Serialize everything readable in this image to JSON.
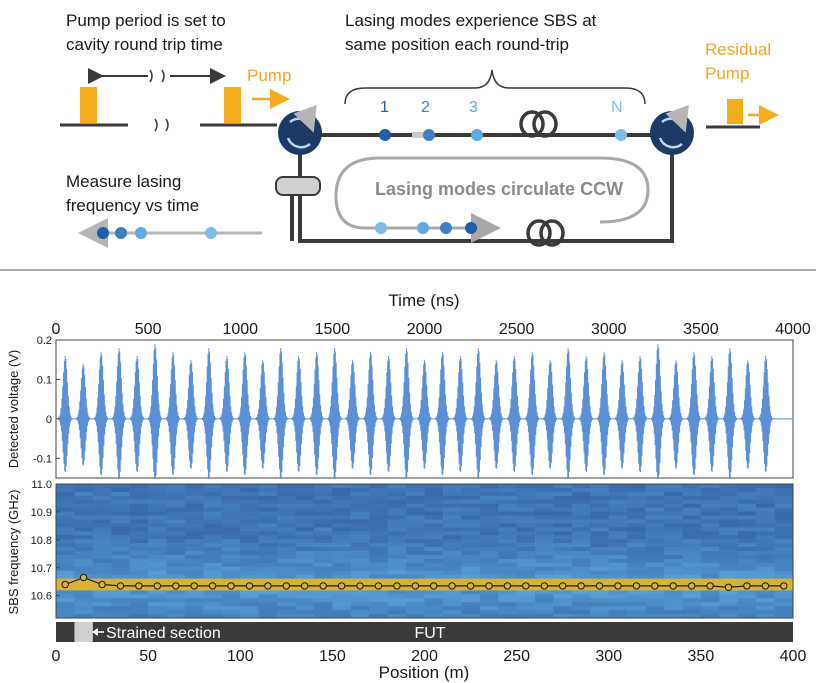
{
  "diagram": {
    "pump_period_label_line1": "Pump period is set to",
    "pump_period_label_line2": "cavity round trip time",
    "sbs_label_line1": "Lasing modes experience SBS at",
    "sbs_label_line2": "same position each round-trip",
    "pump_label": "Pump",
    "residual_pump_line1": "Residual",
    "residual_pump_line2": "Pump",
    "mode_labels": [
      "1",
      "2",
      "3",
      "N"
    ],
    "circulate_label": "Lasing modes circulate CCW",
    "measure_label_line1": "Measure lasing",
    "measure_label_line2": "frequency vs time",
    "colors": {
      "fiber": "#3a3a3a",
      "circulator": "#1b3a66",
      "pump": "#f5ac1e",
      "mode_dark": "#1f5fa8",
      "mode_mid": "#3f7fc4",
      "mode_light": "#5fa8e0",
      "loop": "#a8a8a8"
    }
  },
  "chart_data": [
    {
      "type": "line",
      "xlabel": "Time (ns)",
      "ylabel": "Detected voltage (V)",
      "xlim": [
        0,
        4000
      ],
      "ylim": [
        -0.15,
        0.2
      ],
      "xticks": [
        0,
        500,
        1000,
        1500,
        2000,
        2500,
        3000,
        3500,
        4000
      ],
      "yticks": [
        -0.1,
        0,
        0.1,
        0.2
      ],
      "ytick_labels": [
        "-0.1",
        "0",
        "0.1",
        "0.2"
      ],
      "series_color": "#5b8fd6",
      "burst_count": 40,
      "burst_period_ns": 97.5,
      "burst_amplitudes": [
        0.16,
        0.14,
        0.17,
        0.18,
        0.16,
        0.19,
        0.17,
        0.15,
        0.18,
        0.16,
        0.17,
        0.15,
        0.18,
        0.16,
        0.17,
        0.18,
        0.15,
        0.17,
        0.16,
        0.18,
        0.15,
        0.17,
        0.16,
        0.18,
        0.15,
        0.16,
        0.17,
        0.15,
        0.18,
        0.16,
        0.17,
        0.15,
        0.16,
        0.19,
        0.15,
        0.17,
        0.16,
        0.18,
        0.15,
        0.16
      ]
    },
    {
      "type": "heatmap",
      "xlabel": "Position (m)",
      "ylabel": "SBS frequency (GHz)",
      "xlim": [
        0,
        400
      ],
      "ylim": [
        10.52,
        11.0
      ],
      "xticks": [
        0,
        50,
        100,
        150,
        200,
        250,
        300,
        350,
        400
      ],
      "yticks": [
        10.6,
        10.7,
        10.8,
        10.9,
        11.0
      ],
      "ytick_labels": [
        "10.6",
        "10.7",
        "10.8",
        "10.9",
        "11.0"
      ],
      "peak_band_center_ghz": 10.635,
      "peak_band_width_ghz": 0.04,
      "peak_color": "#d9b234",
      "line_color": "#1a1a1a",
      "peak_points": {
        "x": [
          5,
          15,
          25,
          35,
          45,
          55,
          65,
          75,
          85,
          95,
          105,
          115,
          125,
          135,
          145,
          155,
          165,
          175,
          185,
          195,
          205,
          215,
          225,
          235,
          245,
          255,
          265,
          275,
          285,
          295,
          305,
          315,
          325,
          335,
          345,
          355,
          365,
          375,
          385,
          395
        ],
        "y": [
          10.64,
          10.665,
          10.64,
          10.635,
          10.635,
          10.635,
          10.635,
          10.635,
          10.635,
          10.635,
          10.635,
          10.635,
          10.635,
          10.635,
          10.635,
          10.635,
          10.635,
          10.635,
          10.635,
          10.635,
          10.635,
          10.635,
          10.635,
          10.635,
          10.635,
          10.635,
          10.635,
          10.635,
          10.635,
          10.635,
          10.635,
          10.635,
          10.635,
          10.635,
          10.635,
          10.635,
          10.63,
          10.635,
          10.635,
          10.635
        ]
      },
      "strained_section": {
        "label": "Strained section",
        "start_m": 10,
        "end_m": 20
      },
      "fut_label": "FUT"
    }
  ]
}
